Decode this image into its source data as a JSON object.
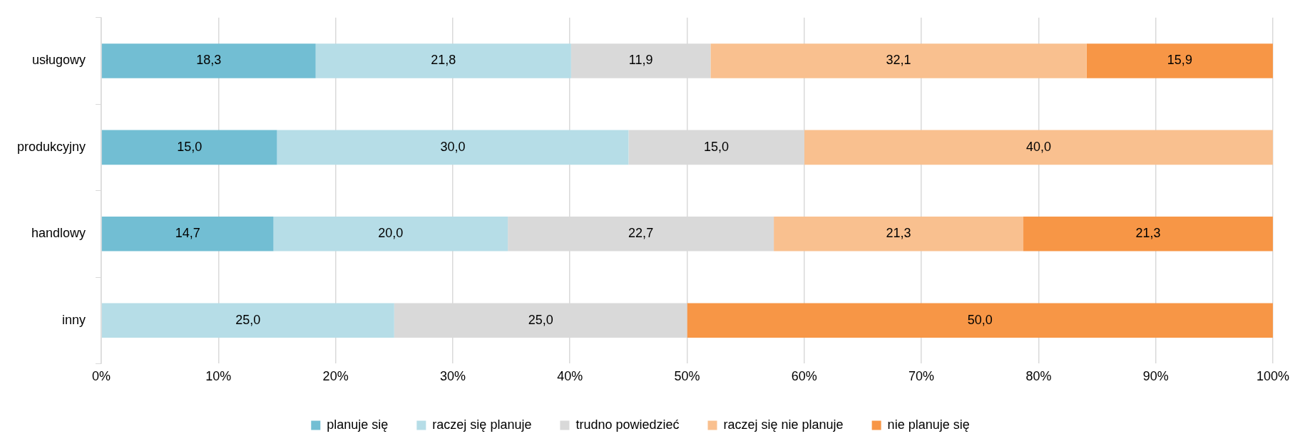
{
  "chart_data": {
    "type": "bar",
    "orientation": "horizontal",
    "stacked": true,
    "categories": [
      "usługowy",
      "produkcyjny",
      "handlowy",
      "inny"
    ],
    "series": [
      {
        "name": "planuje się",
        "color": "#72bed3",
        "values": [
          18.3,
          15.0,
          14.7,
          null
        ],
        "value_labels": [
          "18,3",
          "15,0",
          "14,7",
          null
        ]
      },
      {
        "name": "raczej się planuje",
        "color": "#b6dde7",
        "values": [
          21.8,
          30.0,
          20.0,
          25.0
        ],
        "value_labels": [
          "21,8",
          "30,0",
          "20,0",
          "25,0"
        ]
      },
      {
        "name": "trudno powiedzieć",
        "color": "#d9d9d9",
        "values": [
          11.9,
          15.0,
          22.7,
          25.0
        ],
        "value_labels": [
          "11,9",
          "15,0",
          "22,7",
          "25,0"
        ]
      },
      {
        "name": "raczej się nie planuje",
        "color": "#f9c08f",
        "values": [
          32.1,
          40.0,
          21.3,
          null
        ],
        "value_labels": [
          "32,1",
          "40,0",
          "21,3",
          null
        ]
      },
      {
        "name": "nie planuje się",
        "color": "#f79646",
        "values": [
          15.9,
          null,
          21.3,
          50.0
        ],
        "value_labels": [
          "15,9",
          null,
          "21,3",
          "50,0"
        ]
      }
    ],
    "xlim": [
      0,
      100
    ],
    "xticks": [
      {
        "value": 0,
        "label": "0%"
      },
      {
        "value": 10,
        "label": "10%"
      },
      {
        "value": 20,
        "label": "20%"
      },
      {
        "value": 30,
        "label": "30%"
      },
      {
        "value": 40,
        "label": "40%"
      },
      {
        "value": 50,
        "label": "50%"
      },
      {
        "value": 60,
        "label": "60%"
      },
      {
        "value": 70,
        "label": "70%"
      },
      {
        "value": 80,
        "label": "80%"
      },
      {
        "value": 90,
        "label": "90%"
      },
      {
        "value": 100,
        "label": "100%"
      }
    ],
    "grid": "x",
    "legend": "bottom"
  }
}
